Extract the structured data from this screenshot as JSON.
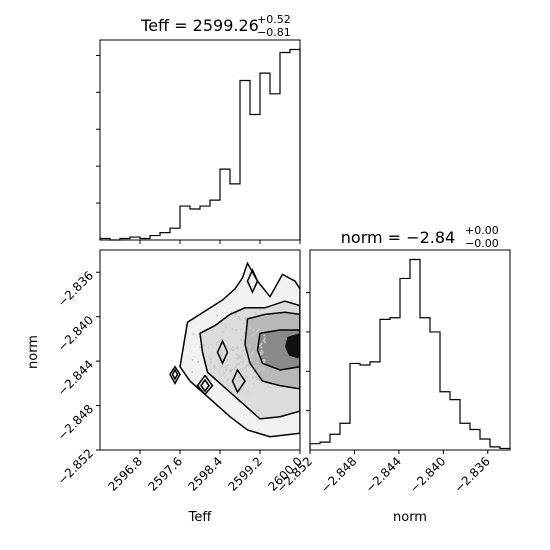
{
  "chart_data": [
    {
      "type": "histogram",
      "panel": "teff-histogram",
      "title_param": "Teff",
      "title_value": "2599.26",
      "title_plus": "+0.52",
      "title_minus": "−0.81",
      "xlim": [
        2596.0,
        2600.0
      ],
      "bin_edges": [
        2596.0,
        2596.2,
        2596.4,
        2596.6,
        2596.8,
        2597.0,
        2597.2,
        2597.4,
        2597.6,
        2597.8,
        2598.0,
        2598.2,
        2598.4,
        2598.6,
        2598.8,
        2599.0,
        2599.2,
        2599.4,
        2599.6,
        2599.8,
        2600.0
      ],
      "counts": [
        1,
        0,
        1,
        2,
        1,
        3,
        5,
        8,
        23,
        21,
        23,
        27,
        48,
        38,
        108,
        85,
        113,
        99,
        127,
        129
      ]
    },
    {
      "type": "histogram",
      "panel": "norm-histogram",
      "title_param": "norm",
      "title_value": "−2.84",
      "title_plus": "+0.00",
      "title_minus": "−0.00",
      "xlabel": "norm",
      "xlim": [
        -2.852,
        -2.834
      ],
      "x_ticks": [
        "−2.852",
        "−2.848",
        "−2.844",
        "−2.840",
        "−2.836"
      ],
      "x_tick_values": [
        -2.852,
        -2.848,
        -2.844,
        -2.84,
        -2.836
      ],
      "bin_edges": [
        -2.852,
        -2.8511,
        -2.8502,
        -2.8493,
        -2.8484,
        -2.8475,
        -2.8466,
        -2.8457,
        -2.8448,
        -2.8439,
        -2.843,
        -2.8421,
        -2.8412,
        -2.8403,
        -2.8394,
        -2.8385,
        -2.8376,
        -2.8367,
        -2.8358,
        -2.8349,
        -2.834
      ],
      "counts": [
        4,
        5,
        10,
        17,
        55,
        54,
        56,
        83,
        84,
        109,
        121,
        84,
        75,
        37,
        32,
        17,
        13,
        7,
        2,
        1
      ]
    },
    {
      "type": "contour",
      "panel": "teff-norm-2d",
      "xlabel": "Teff",
      "ylabel": "norm",
      "xlim": [
        2596.0,
        2600.0
      ],
      "ylim": [
        -2.852,
        -2.834
      ],
      "x_ticks": [
        "2596.8",
        "2597.6",
        "2598.4",
        "2599.2",
        "2600.0"
      ],
      "x_tick_values": [
        2596.8,
        2597.6,
        2598.4,
        2599.2,
        2600.0
      ],
      "y_ticks": [
        "−2.852",
        "−2.848",
        "−2.844",
        "−2.840",
        "−2.836"
      ],
      "y_tick_values": [
        -2.852,
        -2.848,
        -2.844,
        -2.84,
        -2.836
      ],
      "contours": [
        [
          [
            2597.6,
            -2.8445
          ],
          [
            2597.75,
            -2.8405
          ],
          [
            2598.1,
            -2.8395
          ],
          [
            2598.45,
            -2.8385
          ],
          [
            2598.7,
            -2.8375
          ],
          [
            2598.85,
            -2.8365
          ],
          [
            2598.95,
            -2.8352
          ],
          [
            2599.15,
            -2.8368
          ],
          [
            2599.4,
            -2.8382
          ],
          [
            2599.65,
            -2.8362
          ],
          [
            2599.9,
            -2.8368
          ],
          [
            2600.0,
            -2.8375
          ],
          [
            2600.0,
            -2.8505
          ],
          [
            2599.4,
            -2.8508
          ],
          [
            2598.95,
            -2.8502
          ],
          [
            2598.6,
            -2.849
          ],
          [
            2598.3,
            -2.8478
          ],
          [
            2598.05,
            -2.8468
          ],
          [
            2597.8,
            -2.8458
          ],
          [
            2597.6,
            -2.8445
          ]
        ],
        [
          [
            2598.0,
            -2.8415
          ],
          [
            2598.3,
            -2.8408
          ],
          [
            2598.6,
            -2.8398
          ],
          [
            2598.9,
            -2.8392
          ],
          [
            2599.3,
            -2.8392
          ],
          [
            2599.7,
            -2.8386
          ],
          [
            2600.0,
            -2.839
          ],
          [
            2600.0,
            -2.8485
          ],
          [
            2599.6,
            -2.849
          ],
          [
            2599.2,
            -2.8492
          ],
          [
            2598.85,
            -2.8478
          ],
          [
            2598.45,
            -2.8462
          ],
          [
            2598.15,
            -2.845
          ],
          [
            2598.05,
            -2.8432
          ],
          [
            2598.0,
            -2.8415
          ]
        ],
        [
          [
            2598.95,
            -2.8402
          ],
          [
            2599.3,
            -2.8398
          ],
          [
            2599.7,
            -2.8396
          ],
          [
            2600.0,
            -2.8398
          ],
          [
            2600.0,
            -2.8465
          ],
          [
            2599.6,
            -2.8462
          ],
          [
            2599.25,
            -2.8458
          ],
          [
            2599.0,
            -2.8442
          ],
          [
            2598.9,
            -2.8425
          ],
          [
            2598.95,
            -2.8402
          ]
        ],
        [
          [
            2599.2,
            -2.8415
          ],
          [
            2599.6,
            -2.8412
          ],
          [
            2600.0,
            -2.8412
          ],
          [
            2600.0,
            -2.8445
          ],
          [
            2599.6,
            -2.8448
          ],
          [
            2599.25,
            -2.8442
          ],
          [
            2599.15,
            -2.843
          ],
          [
            2599.2,
            -2.8415
          ]
        ],
        [
          [
            2599.75,
            -2.8418
          ],
          [
            2600.0,
            -2.8415
          ],
          [
            2600.0,
            -2.8438
          ],
          [
            2599.78,
            -2.8435
          ],
          [
            2599.7,
            -2.8427
          ],
          [
            2599.75,
            -2.8418
          ]
        ],
        [
          [
            2597.5,
            -2.8445
          ],
          [
            2597.6,
            -2.8452
          ],
          [
            2597.5,
            -2.846
          ],
          [
            2597.4,
            -2.8452
          ],
          [
            2597.5,
            -2.8445
          ]
        ],
        [
          [
            2597.5,
            -2.8448
          ],
          [
            2597.55,
            -2.8452
          ],
          [
            2597.5,
            -2.8456
          ],
          [
            2597.45,
            -2.8452
          ],
          [
            2597.5,
            -2.8448
          ]
        ],
        [
          [
            2598.1,
            -2.8453
          ],
          [
            2598.25,
            -2.8462
          ],
          [
            2598.1,
            -2.847
          ],
          [
            2597.95,
            -2.8462
          ],
          [
            2598.1,
            -2.8453
          ]
        ],
        [
          [
            2598.1,
            -2.8457
          ],
          [
            2598.18,
            -2.8462
          ],
          [
            2598.1,
            -2.8467
          ],
          [
            2598.02,
            -2.8462
          ],
          [
            2598.1,
            -2.8457
          ]
        ],
        [
          [
            2598.45,
            -2.8422
          ],
          [
            2598.55,
            -2.8432
          ],
          [
            2598.45,
            -2.8442
          ],
          [
            2598.35,
            -2.8432
          ],
          [
            2598.45,
            -2.8422
          ]
        ],
        [
          [
            2599.05,
            -2.8358
          ],
          [
            2599.15,
            -2.8368
          ],
          [
            2599.05,
            -2.8378
          ],
          [
            2598.95,
            -2.8368
          ],
          [
            2599.05,
            -2.8358
          ]
        ],
        [
          [
            2598.75,
            -2.8448
          ],
          [
            2598.9,
            -2.8458
          ],
          [
            2598.75,
            -2.8468
          ],
          [
            2598.65,
            -2.8458
          ],
          [
            2598.75,
            -2.8448
          ]
        ]
      ]
    }
  ]
}
